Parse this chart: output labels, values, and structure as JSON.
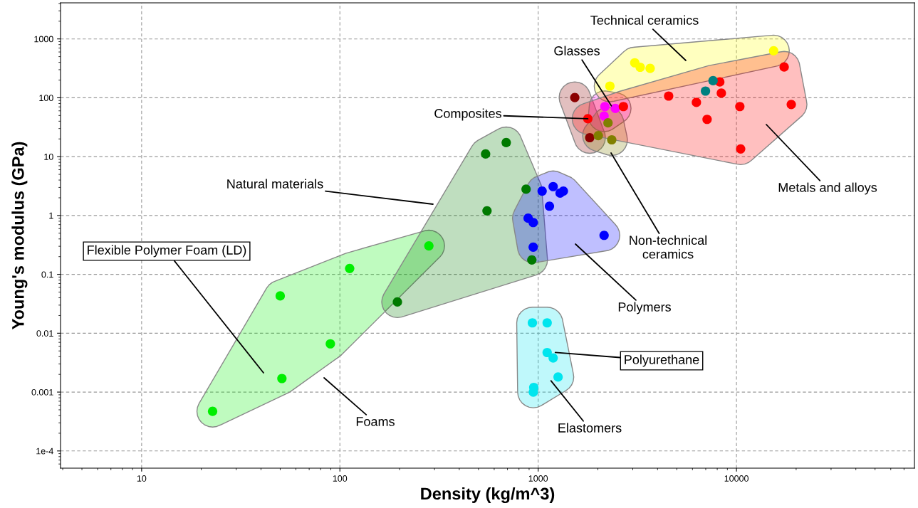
{
  "chart_data": {
    "type": "scatter",
    "xlabel": "Density (kg/m^3)",
    "ylabel": "Young's modulus (GPa)",
    "log": "xy",
    "grid": true,
    "marker": "circle",
    "xlim": [
      3.9,
      79000
    ],
    "ylim": [
      5.1e-05,
      4100
    ],
    "xticks": [
      10,
      100,
      1000,
      10000
    ],
    "yticks": [
      {
        "value": 0.0001,
        "label": "1e-4"
      },
      0.001,
      0.01,
      0.1,
      1,
      10,
      100,
      1000
    ],
    "series": [
      {
        "color": "#00ee00",
        "x": [
          22.8,
          51,
          89.5,
          50,
          112,
          281
        ],
        "values": [
          0.00047,
          0.0017,
          0.0066,
          0.043,
          0.126,
          0.305
        ]
      },
      {
        "color": "#007a00",
        "x": [
          195,
          929,
          552,
          869,
          543,
          690
        ],
        "values": [
          0.034,
          0.176,
          1.2,
          2.8,
          11.1,
          17.3
        ]
      },
      {
        "color": "#0000ff",
        "x": [
          944,
          2150,
          944,
          890,
          1140,
          1047,
          1290,
          1190,
          1340
        ],
        "values": [
          0.29,
          0.46,
          0.76,
          0.9,
          1.44,
          2.6,
          2.4,
          3.1,
          2.6
        ]
      },
      {
        "color": "#00e5ee",
        "x": [
          1110,
          935,
          950,
          1190,
          1110,
          1260,
          945
        ],
        "values": [
          0.015,
          0.015,
          0.0012,
          0.0038,
          0.0047,
          0.0018,
          0.001
        ]
      },
      {
        "color": "#8b0000",
        "x": [
          1530,
          1820
        ],
        "values": [
          101,
          21
        ]
      },
      {
        "color": "#ff00ff",
        "x": [
          2170,
          2450,
          2150
        ],
        "values": [
          71,
          66,
          49
        ]
      },
      {
        "color": "#808000",
        "x": [
          2250,
          2350,
          2010
        ],
        "values": [
          37.5,
          19.3,
          22.8
        ]
      },
      {
        "color": "#ffff00",
        "x": [
          2300,
          3070,
          3270,
          3670,
          15400
        ],
        "values": [
          158,
          393,
          330,
          315,
          628
        ]
      },
      {
        "color": "#ff0000",
        "x": [
          1780,
          2690,
          4550,
          6280,
          8240,
          8390,
          7110,
          10400,
          10500,
          17400,
          18900,
          6980,
          7620
        ],
        "values": [
          44,
          71,
          107,
          83.5,
          186,
          120,
          43,
          71,
          13.5,
          333,
          77,
          130,
          195
        ],
        "colors": [
          "#ff0000",
          "#ff0000",
          "#ff0000",
          "#ff0000",
          "#ff0000",
          "#ff0000",
          "#ff0000",
          "#ff0000",
          "#ff0000",
          "#ff0000",
          "#ff0000",
          "#008080",
          "#008080"
        ]
      }
    ],
    "annotations": [
      "Technical ceramics",
      {
        "text": "Glasses",
        "x": 2340,
        "y": 73
      },
      {
        "text": "Composites",
        "x": 1780,
        "y": 44
      },
      "Natural materials",
      "Metals and alloys",
      "Non-technical\nceramics",
      "Polymers",
      {
        "text": "Polyurethane",
        "x": 1220,
        "y": 0.0047
      },
      {
        "text": "Elastomers",
        "x": 1160,
        "y": 0.00156
      },
      "Foams",
      "Flexible Polymer Foam (LD)"
    ]
  }
}
